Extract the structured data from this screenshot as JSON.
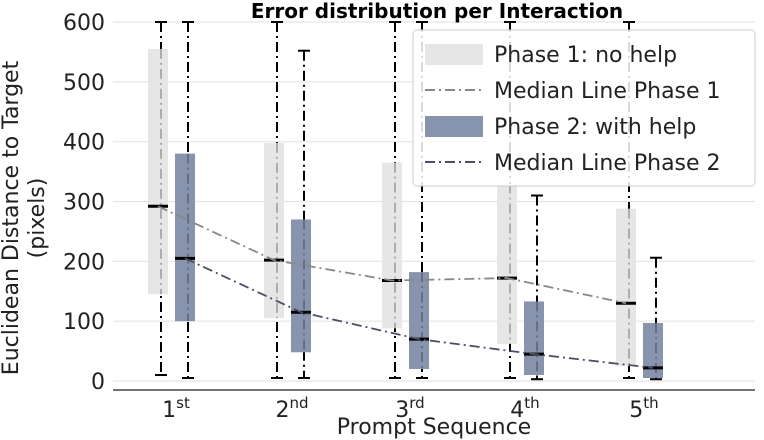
{
  "chart_data": {
    "type": "box",
    "title": "Error distribution per Interaction",
    "xlabel": "Prompt Sequence",
    "ylabel_line1": "Euclidean Distance to Target",
    "ylabel_line2": "(pixels)",
    "ylim": [
      0,
      600
    ],
    "yticks": [
      0,
      100,
      200,
      300,
      400,
      500,
      600
    ],
    "grid": true,
    "legend_placement": "top-right",
    "categories": [
      {
        "base": "1",
        "sup": "st"
      },
      {
        "base": "2",
        "sup": "nd"
      },
      {
        "base": "3",
        "sup": "rd"
      },
      {
        "base": "4",
        "sup": "th"
      },
      {
        "base": "5",
        "sup": "th"
      }
    ],
    "series": [
      {
        "name": "Phase 1: no help",
        "color": "#e6e6e6",
        "boxes": [
          {
            "min": 10,
            "q1": 145,
            "median": 292,
            "q3": 555,
            "max": 600
          },
          {
            "min": 5,
            "q1": 105,
            "median": 202,
            "q3": 398,
            "max": 600
          },
          {
            "min": 5,
            "q1": 88,
            "median": 168,
            "q3": 365,
            "max": 600
          },
          {
            "min": 5,
            "q1": 62,
            "median": 172,
            "q3": 330,
            "max": 600
          },
          {
            "min": 5,
            "q1": 25,
            "median": 130,
            "q3": 288,
            "max": 600
          }
        ]
      },
      {
        "name": "Phase 2: with help",
        "color": "#8893ad",
        "boxes": [
          {
            "min": 5,
            "q1": 100,
            "median": 205,
            "q3": 380,
            "max": 600
          },
          {
            "min": 5,
            "q1": 48,
            "median": 115,
            "q3": 270,
            "max": 552
          },
          {
            "min": 5,
            "q1": 20,
            "median": 70,
            "q3": 182,
            "max": 600
          },
          {
            "min": 3,
            "q1": 10,
            "median": 45,
            "q3": 133,
            "max": 310
          },
          {
            "min": 3,
            "q1": 5,
            "median": 22,
            "q3": 97,
            "max": 206
          }
        ]
      }
    ],
    "median_lines": [
      {
        "name": "Median Line Phase 1",
        "color": "#888888",
        "values": [
          292,
          202,
          168,
          172,
          130
        ]
      },
      {
        "name": "Median Line Phase 2",
        "color": "#4a4f64",
        "values": [
          205,
          115,
          70,
          45,
          22
        ]
      }
    ]
  }
}
